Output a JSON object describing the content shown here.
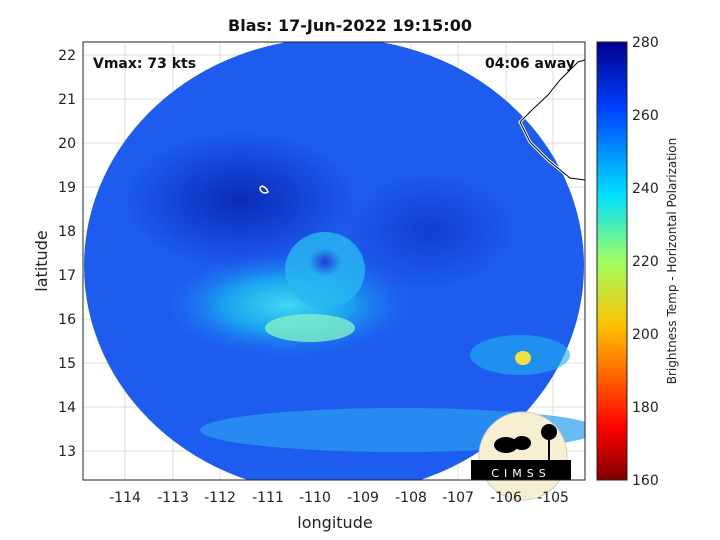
{
  "title": "Blas: 17-Jun-2022 19:15:00",
  "vmax_label": "Vmax: 73 kts",
  "time_away": "04:06 away",
  "x_axis": {
    "label": "longitude",
    "ticks": [
      "-114",
      "-113",
      "-112",
      "-111",
      "-110",
      "-109",
      "-108",
      "-107",
      "-106",
      "-105"
    ]
  },
  "y_axis": {
    "label": "latitude",
    "ticks": [
      "22",
      "21",
      "20",
      "19",
      "18",
      "17",
      "16",
      "15",
      "14",
      "13"
    ]
  },
  "colorbar": {
    "label": "Brightness Temp - Horizontal Polarization",
    "ticks": [
      "280",
      "260",
      "240",
      "220",
      "200",
      "180",
      "160"
    ],
    "range": [
      160,
      280
    ]
  },
  "logo": {
    "text": "CIMSS"
  },
  "colors": {
    "low": "#800000",
    "mid": "#00ffff",
    "high": "#00008f"
  }
}
